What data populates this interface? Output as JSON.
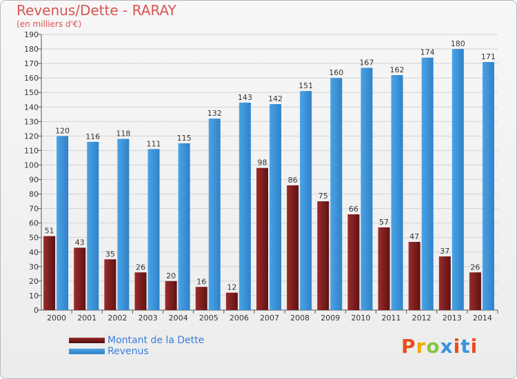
{
  "chart_data": {
    "type": "bar",
    "title": "Revenus/Dette - RARAY",
    "subtitle": "(en milliers d'€)",
    "categories": [
      "2000",
      "2001",
      "2002",
      "2003",
      "2004",
      "2005",
      "2006",
      "2007",
      "2008",
      "2009",
      "2010",
      "2011",
      "2012",
      "2013",
      "2014"
    ],
    "series": [
      {
        "name": "Montant de la Dette",
        "color": "#7a1f1f",
        "values": [
          51,
          43,
          35,
          26,
          20,
          16,
          12,
          98,
          86,
          75,
          66,
          57,
          47,
          37,
          26
        ]
      },
      {
        "name": "Revenus",
        "color": "#3a94dc",
        "values": [
          120,
          116,
          118,
          111,
          115,
          132,
          143,
          142,
          151,
          160,
          167,
          162,
          174,
          180,
          171
        ]
      }
    ],
    "ylim": [
      0,
      190
    ],
    "ytick_step": 10,
    "grid": true,
    "legend_position": "bottom-left"
  },
  "logo": {
    "text": "Proxiti",
    "colors": [
      "#e94e1b",
      "#f2a900",
      "#8ac43f",
      "#3a94dc",
      "#e94e1b",
      "#3a94dc",
      "#e94e1b"
    ]
  }
}
